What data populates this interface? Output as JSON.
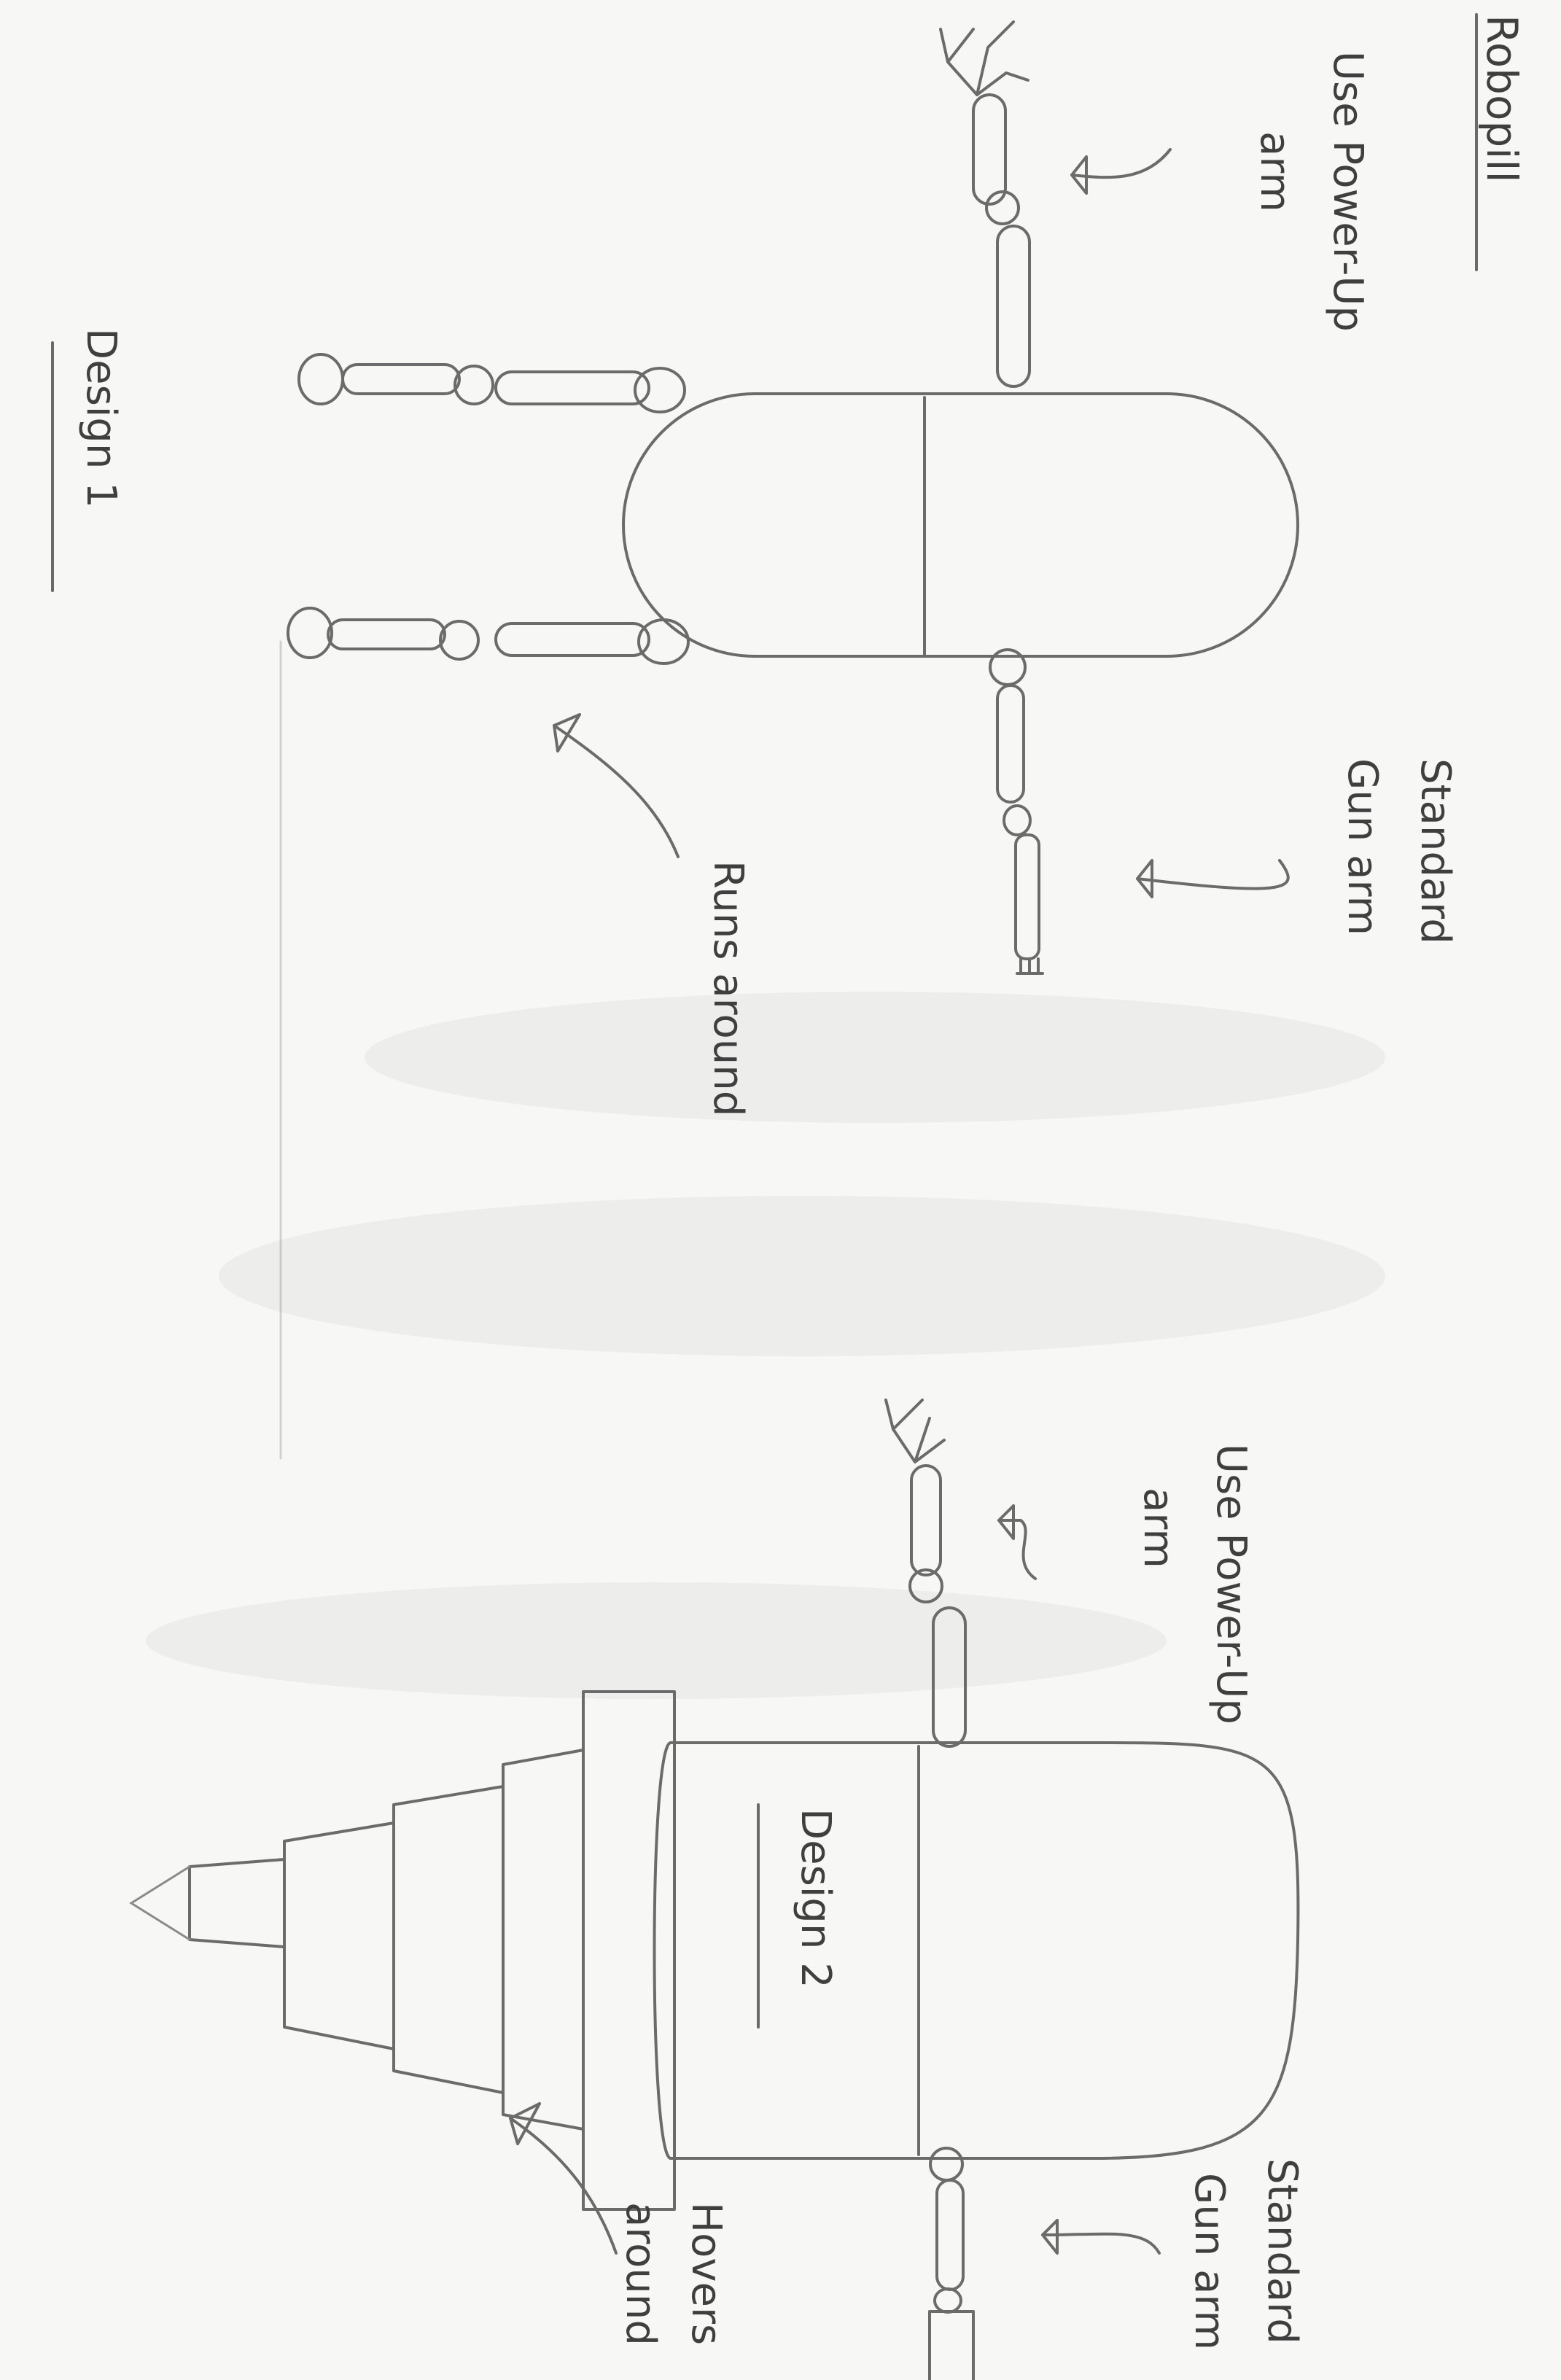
{
  "sheet": {
    "title": "Robopill",
    "paper_color": "#f7f7f5",
    "pencil_color": "#6b6b6b"
  },
  "design_1": {
    "caption": "Design 1",
    "labels": {
      "power_up_arm_line1": "Use Power-Up",
      "power_up_arm_line2": "arm",
      "gun_arm_line1": "Standard",
      "gun_arm_line2": "Gun arm",
      "movement": "Runs around"
    }
  },
  "design_2": {
    "caption": "Design 2",
    "labels": {
      "power_up_arm_line1": "Use Power-Up",
      "power_up_arm_line2": "arm",
      "gun_arm_line1": "Standard",
      "gun_arm_line2": "Gun arm",
      "movement_line1": "Hovers",
      "movement_line2": "around"
    }
  }
}
